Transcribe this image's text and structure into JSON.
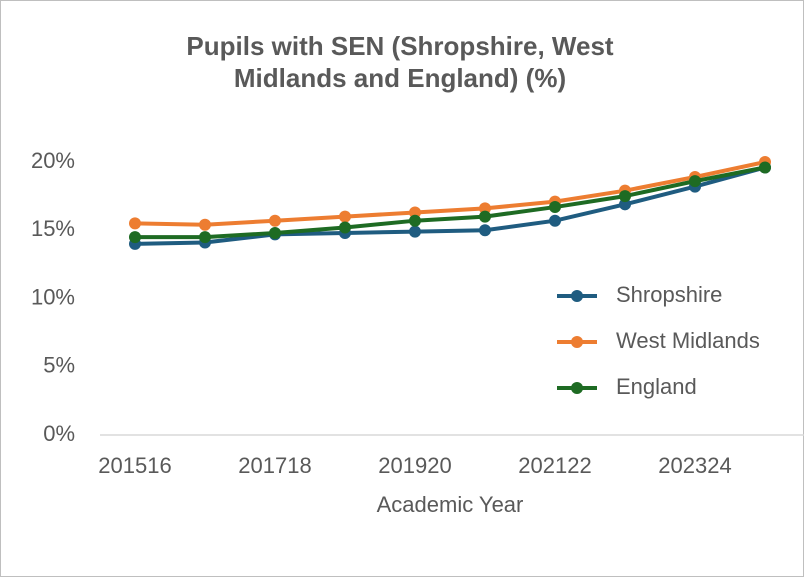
{
  "chart_data": {
    "type": "line",
    "title": "Pupils with SEN (Shropshire, West Midlands and England) (%)",
    "x_label": "Academic Year",
    "categories": [
      "201516",
      null,
      "201718",
      null,
      "201920",
      null,
      "202122",
      null,
      "202324",
      null
    ],
    "series": [
      {
        "name": "Shropshire",
        "color": "#1f5c80",
        "values": [
          14.0,
          14.1,
          14.7,
          14.8,
          14.9,
          15.0,
          15.7,
          16.9,
          18.2,
          19.6
        ]
      },
      {
        "name": "West Midlands",
        "color": "#ed7d31",
        "values": [
          15.5,
          15.4,
          15.7,
          16.0,
          16.3,
          16.6,
          17.1,
          17.9,
          18.9,
          20.0
        ]
      },
      {
        "name": "England",
        "color": "#1e6b23",
        "values": [
          14.5,
          14.5,
          14.8,
          15.2,
          15.7,
          16.0,
          16.7,
          17.5,
          18.6,
          19.6
        ]
      }
    ],
    "ylim": [
      0,
      20
    ],
    "yticks": [
      {
        "value": 0,
        "label": "0%"
      },
      {
        "value": 5,
        "label": "5%"
      },
      {
        "value": 10,
        "label": "10%"
      },
      {
        "value": 15,
        "label": "15%"
      },
      {
        "value": 20,
        "label": "20%"
      }
    ],
    "grid": false,
    "legend": "right"
  }
}
